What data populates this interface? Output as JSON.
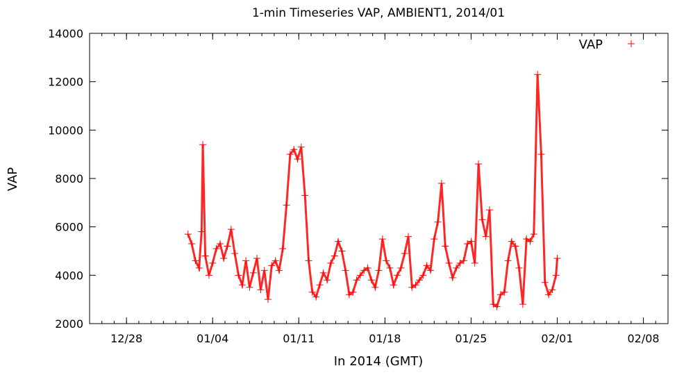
{
  "chart_data": {
    "type": "scatter",
    "title": "1-min Timeseries VAP, AMBIENT1, 2014/01",
    "xlabel": "In 2014 (GMT)",
    "ylabel": "VAP",
    "x_ticks": [
      "12/28",
      "01/04",
      "01/11",
      "01/18",
      "01/25",
      "02/01",
      "02/08"
    ],
    "x_tick_days": [
      -4,
      3,
      10,
      17,
      24,
      31,
      38
    ],
    "x_unit": "day of January 2014",
    "xlim": [
      -7,
      40
    ],
    "y_ticks": [
      "2000",
      "4000",
      "6000",
      "8000",
      "10000",
      "12000",
      "14000"
    ],
    "ylim": [
      2000,
      14000
    ],
    "grid": false,
    "legend_position": "top-right",
    "series": [
      {
        "name": "VAP",
        "marker": "+",
        "color": "#ff0000",
        "x": [
          1.0,
          1.3,
          1.6,
          1.9,
          2.1,
          2.2,
          2.4,
          2.7,
          3.0,
          3.3,
          3.6,
          3.9,
          4.2,
          4.5,
          4.8,
          5.1,
          5.4,
          5.7,
          6.0,
          6.3,
          6.6,
          6.9,
          7.2,
          7.5,
          7.8,
          8.1,
          8.4,
          8.7,
          9.0,
          9.3,
          9.6,
          9.9,
          10.2,
          10.5,
          10.8,
          11.1,
          11.4,
          11.7,
          12.0,
          12.3,
          12.6,
          12.9,
          13.2,
          13.5,
          13.8,
          14.1,
          14.4,
          14.7,
          15.0,
          15.3,
          15.6,
          15.9,
          16.2,
          16.5,
          16.8,
          17.1,
          17.4,
          17.7,
          18.0,
          18.3,
          18.6,
          18.9,
          19.2,
          19.5,
          19.8,
          20.1,
          20.4,
          20.7,
          21.0,
          21.3,
          21.6,
          21.9,
          22.2,
          22.5,
          22.8,
          23.1,
          23.4,
          23.7,
          24.0,
          24.3,
          24.6,
          24.9,
          25.2,
          25.5,
          25.8,
          26.1,
          26.4,
          26.7,
          27.0,
          27.3,
          27.6,
          27.9,
          28.2,
          28.5,
          28.8,
          29.1,
          29.4,
          29.7,
          30.0,
          30.3,
          30.6,
          30.9,
          31.0
        ],
        "y": [
          5700,
          5300,
          4600,
          4300,
          5800,
          9400,
          4800,
          4000,
          4500,
          5100,
          5300,
          4700,
          5200,
          5900,
          4900,
          4000,
          3600,
          4600,
          3500,
          4100,
          4700,
          3400,
          4200,
          3000,
          4400,
          4600,
          4200,
          5100,
          6900,
          9000,
          9200,
          8800,
          9300,
          7300,
          4600,
          3300,
          3100,
          3600,
          4100,
          3800,
          4500,
          4800,
          5400,
          5000,
          4200,
          3200,
          3300,
          3800,
          4000,
          4200,
          4300,
          3800,
          3500,
          4200,
          5500,
          4600,
          4300,
          3600,
          4000,
          4300,
          4900,
          5600,
          3500,
          3600,
          3800,
          4000,
          4400,
          4200,
          5500,
          6200,
          7800,
          5200,
          4500,
          3900,
          4300,
          4500,
          4600,
          5300,
          5400,
          4500,
          8600,
          6300,
          5600,
          6700,
          2800,
          2700,
          3200,
          3300,
          4600,
          5400,
          5200,
          4300,
          2800,
          5500,
          5400,
          5700,
          12300,
          9000,
          3700,
          3200,
          3400,
          4000,
          4700
        ]
      }
    ]
  }
}
